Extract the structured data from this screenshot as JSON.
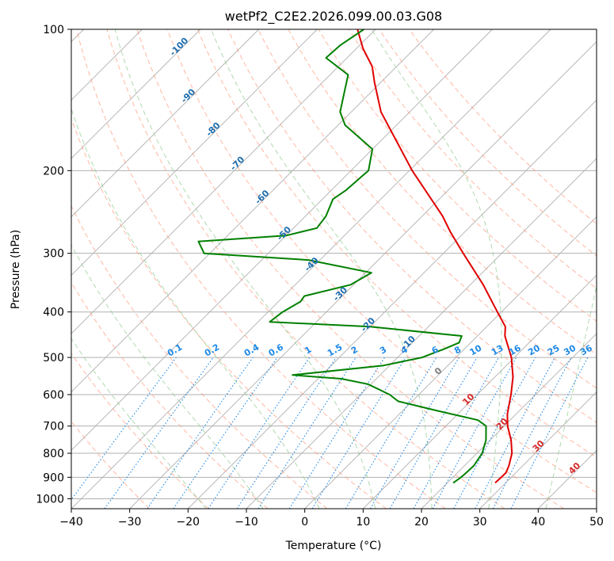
{
  "chart_data": {
    "type": "skew-t",
    "title": "wetPf2_C2E2.2026.099.00.03.G08",
    "xlabel": "Temperature (°C)",
    "ylabel": "Pressure (hPa)",
    "xlim": [
      -40,
      50
    ],
    "ylim_hPa": [
      1050,
      100
    ],
    "x_ticks": [
      -40,
      -30,
      -20,
      -10,
      0,
      10,
      20,
      30,
      40,
      50
    ],
    "y_ticks": [
      100,
      200,
      300,
      400,
      500,
      600,
      700,
      800,
      900,
      1000
    ],
    "grid": true,
    "series": [
      {
        "role": "temperature",
        "color": "#e00000",
        "points": [
          {
            "p": 925,
            "t": 28.2
          },
          {
            "p": 900,
            "t": 28.3
          },
          {
            "p": 880,
            "t": 28.3
          },
          {
            "p": 850,
            "t": 27.6
          },
          {
            "p": 800,
            "t": 26.0
          },
          {
            "p": 750,
            "t": 23.6
          },
          {
            "p": 700,
            "t": 20.6
          },
          {
            "p": 660,
            "t": 18.5
          },
          {
            "p": 600,
            "t": 15.8
          },
          {
            "p": 550,
            "t": 13.1
          },
          {
            "p": 500,
            "t": 9.5
          },
          {
            "p": 450,
            "t": 4.7
          },
          {
            "p": 430,
            "t": 3.2
          },
          {
            "p": 400,
            "t": -0.7
          },
          {
            "p": 350,
            "t": -7.8
          },
          {
            "p": 300,
            "t": -16.6
          },
          {
            "p": 270,
            "t": -22.5
          },
          {
            "p": 250,
            "t": -26.5
          },
          {
            "p": 200,
            "t": -39.5
          },
          {
            "p": 150,
            "t": -54.9
          },
          {
            "p": 130,
            "t": -61.0
          },
          {
            "p": 120,
            "t": -64.2
          },
          {
            "p": 110,
            "t": -68.8
          },
          {
            "p": 100,
            "t": -73.1
          }
        ]
      },
      {
        "role": "dewpoint",
        "color": "#008000",
        "points": [
          {
            "p": 925,
            "t": 21.0
          },
          {
            "p": 900,
            "t": 21.4
          },
          {
            "p": 880,
            "t": 21.5
          },
          {
            "p": 850,
            "t": 21.6
          },
          {
            "p": 800,
            "t": 20.9
          },
          {
            "p": 750,
            "t": 19.3
          },
          {
            "p": 700,
            "t": 16.9
          },
          {
            "p": 680,
            "t": 14.5
          },
          {
            "p": 650,
            "t": 6.1
          },
          {
            "p": 620,
            "t": -2.4
          },
          {
            "p": 600,
            "t": -5.0
          },
          {
            "p": 570,
            "t": -10.5
          },
          {
            "p": 555,
            "t": -16.0
          },
          {
            "p": 545,
            "t": -25.0
          },
          {
            "p": 520,
            "t": -11.0
          },
          {
            "p": 500,
            "t": -5.8
          },
          {
            "p": 480,
            "t": -3.5
          },
          {
            "p": 465,
            "t": -2.0
          },
          {
            "p": 450,
            "t": -2.7
          },
          {
            "p": 430,
            "t": -20.0
          },
          {
            "p": 420,
            "t": -38.0
          },
          {
            "p": 400,
            "t": -37.5
          },
          {
            "p": 380,
            "t": -36.2
          },
          {
            "p": 370,
            "t": -36.5
          },
          {
            "p": 350,
            "t": -30.5
          },
          {
            "p": 330,
            "t": -29.0
          },
          {
            "p": 310,
            "t": -42.0
          },
          {
            "p": 300,
            "t": -61.0
          },
          {
            "p": 283,
            "t": -64.0
          },
          {
            "p": 275,
            "t": -50.0
          },
          {
            "p": 265,
            "t": -46.0
          },
          {
            "p": 250,
            "t": -46.5
          },
          {
            "p": 230,
            "t": -48.2
          },
          {
            "p": 220,
            "t": -47.5
          },
          {
            "p": 200,
            "t": -47.0
          },
          {
            "p": 180,
            "t": -50.0
          },
          {
            "p": 160,
            "t": -58.8
          },
          {
            "p": 150,
            "t": -61.9
          },
          {
            "p": 140,
            "t": -63.8
          },
          {
            "p": 125,
            "t": -66.9
          },
          {
            "p": 115,
            "t": -73.6
          },
          {
            "p": 108,
            "t": -73.3
          },
          {
            "p": 100,
            "t": -72.0
          }
        ]
      }
    ],
    "dry_adiabats_C": [
      -30,
      -20,
      -10,
      0,
      10,
      20,
      30,
      40,
      50,
      60,
      70,
      80,
      90,
      100,
      110,
      120,
      130
    ],
    "moist_adiabats_C": [
      -20,
      -10,
      0,
      10,
      20,
      30,
      40
    ],
    "mixing_ratio_labels": [
      "0.1",
      "0.2",
      "0.4",
      "0.6",
      "1",
      "1.5",
      "2",
      "3",
      "4",
      "6",
      "8",
      "10",
      "13",
      "16",
      "20",
      "25",
      "30",
      "36"
    ],
    "isotherm_labels_upper": [
      "-100",
      "-90",
      "-80",
      "-70",
      "-60",
      "-50",
      "-40",
      "-30",
      "-20",
      "-10"
    ],
    "isotherm_labels_lower": [
      "0",
      "10",
      "20",
      "30",
      "40"
    ],
    "colors": {
      "temperature": "#e00000",
      "dewpoint": "#008000",
      "mixing_ratio": "#1e88e5",
      "dry_adiabat": "#ff9a7a",
      "moist_adiabat": "#8fc98f",
      "isotherm_label_upper": "#1f6fb0",
      "isotherm_label_zero": "#808080",
      "isotherm_label_lower": "#d62728",
      "grid": "#b0b0b0"
    }
  }
}
